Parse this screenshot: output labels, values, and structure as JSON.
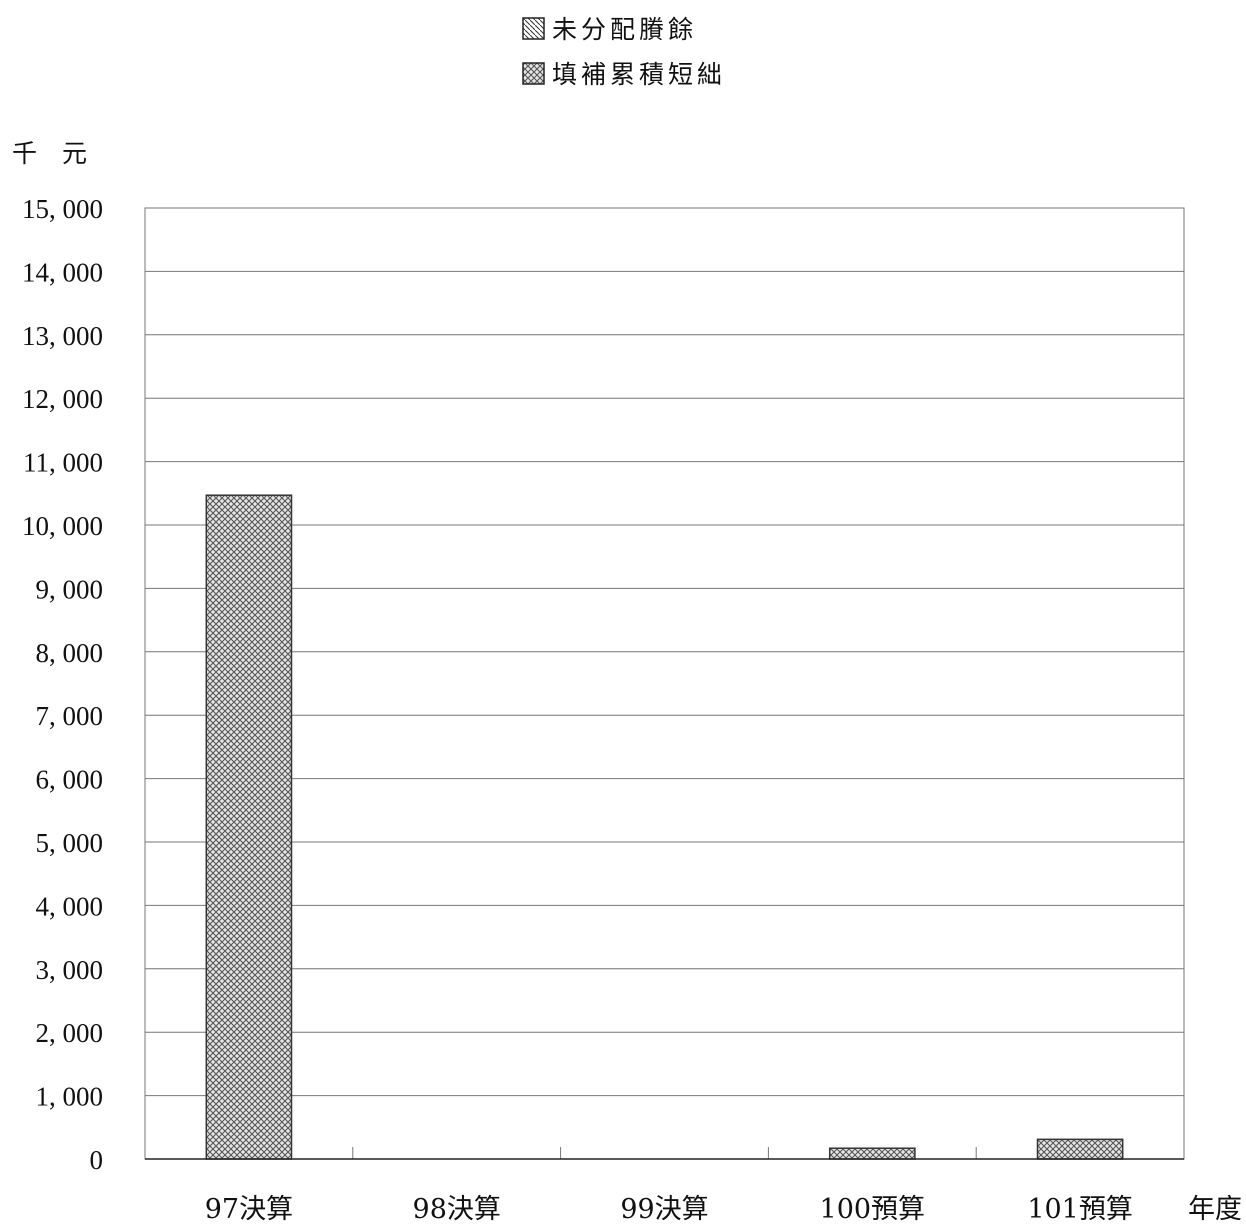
{
  "chart_data": {
    "type": "bar",
    "ylabel": "千　元",
    "xlabel": "年度",
    "ylim": [
      0,
      15000
    ],
    "ytick_step": 1000,
    "yticks": [
      "0",
      "1, 000",
      "2, 000",
      "3, 000",
      "4, 000",
      "5, 000",
      "6, 000",
      "7, 000",
      "8, 000",
      "9, 000",
      "10, 000",
      "11, 000",
      "12, 000",
      "13, 000",
      "14, 000",
      "15, 000"
    ],
    "categories": [
      "97決算",
      "98決算",
      "99決算",
      "100預算",
      "101預算"
    ],
    "grid": true,
    "legend_position": "top-center",
    "stacked": true,
    "series": [
      {
        "name": "未分配賸餘",
        "pattern": "diagonal-hatch",
        "color": "#444444",
        "values": [
          0,
          0,
          0,
          0,
          0
        ]
      },
      {
        "name": "填補累積短絀",
        "pattern": "crosshatch",
        "color": "#555555",
        "values": [
          10470,
          0,
          0,
          170,
          310
        ]
      }
    ]
  }
}
